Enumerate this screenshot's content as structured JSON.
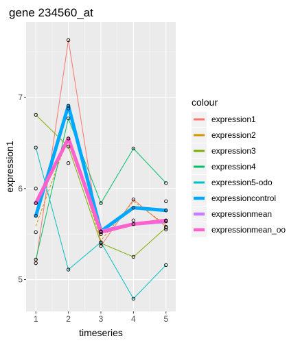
{
  "chart_data": {
    "type": "line",
    "title": "gene 234560_at",
    "xlabel": "timeseries",
    "ylabel": "expression1",
    "x": [
      1,
      2,
      3,
      4,
      5
    ],
    "xlim": [
      0.7,
      5.3
    ],
    "ylim": [
      4.65,
      7.83
    ],
    "y_ticks": [
      5,
      6,
      7
    ],
    "grid": true,
    "panel_background": "#ebebeb",
    "legend": {
      "title": "colour",
      "position": "right"
    },
    "series": [
      {
        "name": "expression1",
        "color": "#f8766d",
        "line_style": "solid",
        "line_width": "thin",
        "points": true,
        "values": [
          5.18,
          7.63,
          5.37,
          5.88,
          5.58
        ]
      },
      {
        "name": "expression2",
        "color": "#cd9600",
        "line_style": "dashed",
        "line_width": "thin",
        "points": false,
        "values": [
          5.59,
          6.57,
          5.43,
          5.86,
          5.6
        ]
      },
      {
        "name": "expression3",
        "color": "#7cae00",
        "line_style": "solid",
        "line_width": "thin",
        "points": true,
        "values": [
          6.81,
          6.46,
          5.4,
          5.25,
          5.57
        ]
      },
      {
        "name": "expression4",
        "color": "#00be67",
        "line_style": "solid",
        "line_width": "thin",
        "points": true,
        "values": [
          5.22,
          6.77,
          5.84,
          6.44,
          6.06
        ]
      },
      {
        "name": "expression5-odo",
        "color": "#00bfc4",
        "line_style": "solid",
        "line_width": "thin",
        "points": true,
        "values": [
          6.45,
          5.11,
          5.41,
          4.79,
          5.16
        ]
      },
      {
        "name": "expressioncontrol",
        "color": "#00a9ff",
        "line_style": "solid",
        "line_width": "thick",
        "points": true,
        "values": [
          5.7,
          6.91,
          5.53,
          5.79,
          5.76
        ]
      },
      {
        "name": "expressionmean",
        "color": "#c77cff",
        "line_style": "solid",
        "line_width": "thick",
        "points": true,
        "values": [
          5.84,
          6.55,
          5.53,
          5.61,
          5.64
        ]
      },
      {
        "name": "expressionmean_oo",
        "color": "#ff61cc",
        "line_style": "solid",
        "line_width": "thick",
        "points": true,
        "values": [
          5.84,
          6.55,
          5.52,
          5.61,
          5.65
        ]
      }
    ],
    "extra_points": [
      {
        "x": 1,
        "y": 6.0
      },
      {
        "x": 1,
        "y": 5.52
      },
      {
        "x": 2,
        "y": 6.28
      },
      {
        "x": 2,
        "y": 6.88
      },
      {
        "x": 3,
        "y": 5.5
      },
      {
        "x": 4,
        "y": 5.65
      },
      {
        "x": 5,
        "y": 5.86
      },
      {
        "x": 5,
        "y": 5.55
      }
    ]
  }
}
